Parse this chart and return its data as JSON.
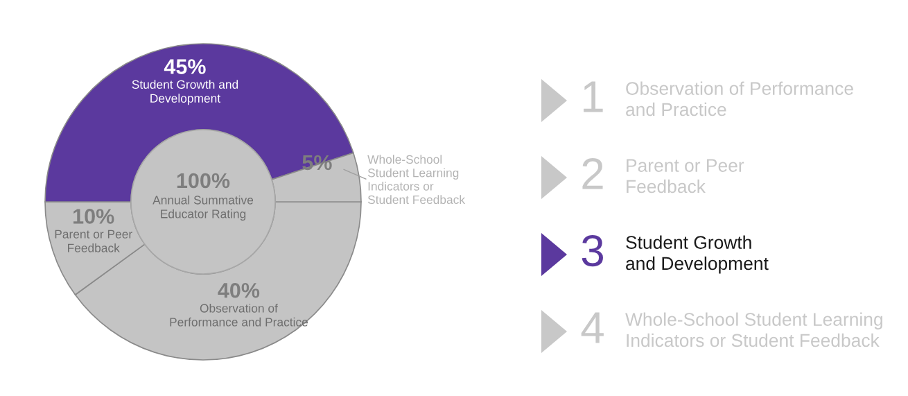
{
  "chart_data": {
    "type": "donut",
    "categories": [
      "Observation of Performance\nand Practice",
      "Parent or Peer\nFeedback",
      "Student Growth\nand Development",
      "Whole-School Student Learning\nIndicators or Student Feedback"
    ],
    "values": [
      40,
      10,
      45,
      5
    ],
    "colors": [
      "#c4c4c4",
      "#c4c4c4",
      "#5b399e",
      "#c4c4c4"
    ],
    "annotations": [
      "100%",
      "Annual Summative\nEducator Rating",
      "1",
      "2",
      "3",
      "4"
    ],
    "value_labels": [
      "40%",
      "10%",
      "45%",
      "5%"
    ]
  }
}
